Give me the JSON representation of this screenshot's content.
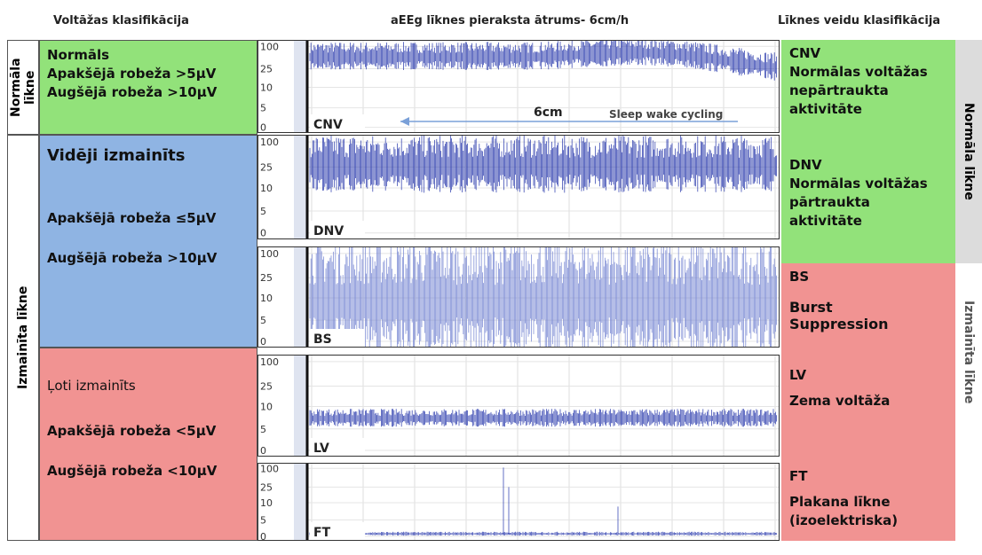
{
  "header": {
    "left": "Voltāžas klasifikācija",
    "center": "aEEg līknes pieraksta ātrums- 6cm/h",
    "right": "Līknes veidu klasifikācija"
  },
  "side_left": [
    "Normāla līkne",
    "Izmainīta līkne"
  ],
  "side_right": [
    "Normāla līkne",
    "Izmainīta līkne"
  ],
  "voltage": [
    {
      "title": "Normāls",
      "lines": [
        "Apakšējā robeža >5µV",
        "Augšējā robeža >10µV"
      ]
    },
    {
      "title": "Vidēji izmainīts",
      "lines": [
        "Apakšējā robeža ≤5µV",
        "Augšējā robeža >10µV"
      ]
    },
    {
      "title": "Ļoti izmainīts",
      "lines": [
        "Apakšējā robeža <5µV",
        "Augšējā robeža <10µV"
      ]
    }
  ],
  "panels": [
    {
      "label": "CNV",
      "yticks": [
        "100",
        "25",
        "10",
        "5",
        "0"
      ],
      "annotations": [
        "6cm",
        "Sleep wake cycling"
      ]
    },
    {
      "label": "DNV",
      "yticks": [
        "100",
        "25",
        "10",
        "5",
        "0"
      ]
    },
    {
      "label": "BS",
      "yticks": [
        "100",
        "25",
        "10",
        "5",
        "0"
      ]
    },
    {
      "label": "LV",
      "yticks": [
        "100",
        "25",
        "10",
        "5",
        "0"
      ]
    },
    {
      "label": "FT",
      "yticks": [
        "100",
        "25",
        "10",
        "5",
        "0"
      ]
    }
  ],
  "types": [
    {
      "code": "CNV",
      "lines": [
        "Normālas voltāžas",
        "nepārtraukta",
        "aktivitāte"
      ]
    },
    {
      "code": "DNV",
      "lines": [
        "Normālas voltāžas",
        "pārtraukta",
        "aktivitāte"
      ]
    },
    {
      "code": "BS",
      "lines": [
        "Burst",
        "Suppression"
      ]
    },
    {
      "code": "LV",
      "lines": [
        "Zema voltāža"
      ]
    },
    {
      "code": "FT",
      "lines": [
        "Plakana līkne",
        "(izoelektriska)"
      ]
    }
  ]
}
